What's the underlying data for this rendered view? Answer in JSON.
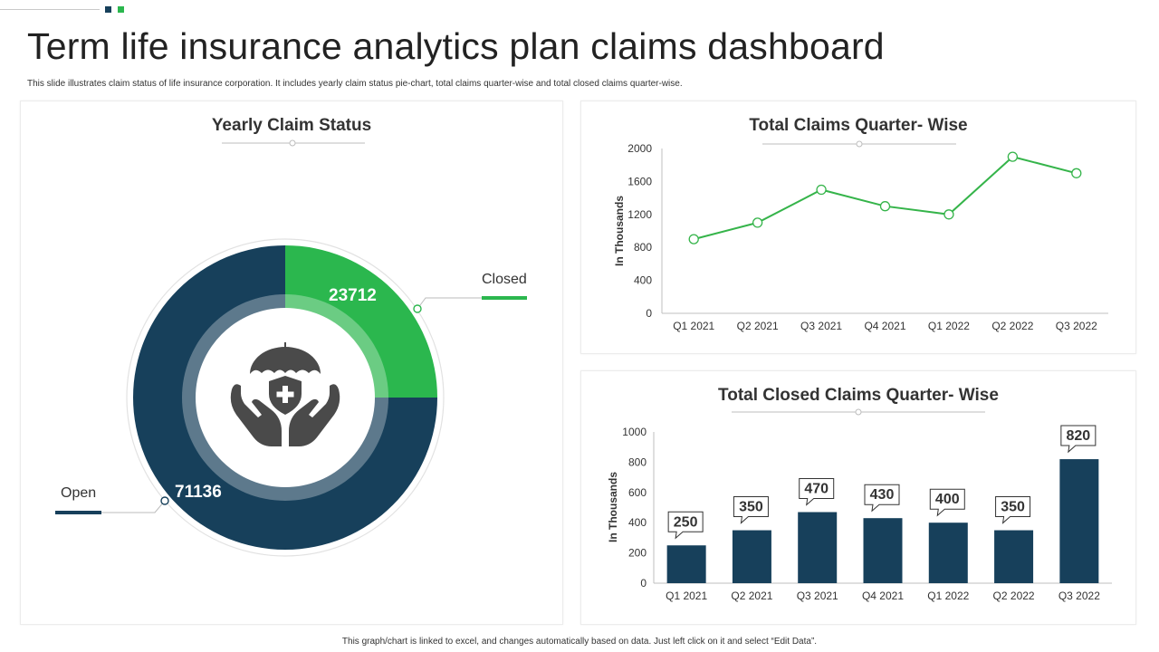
{
  "page": {
    "title": "Term life insurance analytics plan claims dashboard",
    "subtitle": "This slide illustrates claim status of life insurance corporation. It includes yearly claim status pie-chart, total claims quarter-wise and total closed claims quarter-wise.",
    "footer": "This graph/chart is linked to excel, and changes automatically based on data. Just left click on it and select “Edit Data”."
  },
  "colors": {
    "navy": "#17405b",
    "green": "#2bb74e",
    "line_green": "#35b44a",
    "icon_gray": "#4a4a4a"
  },
  "icons": {
    "center": "umbrella-hands-shield-icon"
  },
  "chart_data": [
    {
      "type": "pie",
      "title": "Yearly Claim Status",
      "labels": [
        "Closed",
        "Open"
      ],
      "values": [
        23712,
        71136
      ],
      "value_labels": [
        "23712",
        "71136"
      ]
    },
    {
      "type": "line",
      "title": "Total Claims Quarter- Wise",
      "categories": [
        "Q1 2021",
        "Q2 2021",
        "Q3 2021",
        "Q4 2021",
        "Q1 2022",
        "Q2 2022",
        "Q3 2022"
      ],
      "values": [
        900,
        1100,
        1500,
        1300,
        1200,
        1900,
        1700
      ],
      "ylabel": "In Thousands",
      "ylim": [
        0,
        2000
      ],
      "yticks": [
        0,
        400,
        800,
        1200,
        1600,
        2000
      ]
    },
    {
      "type": "bar",
      "title": "Total Closed Claims Quarter- Wise",
      "categories": [
        "Q1 2021",
        "Q2 2021",
        "Q3 2021",
        "Q4 2021",
        "Q1 2022",
        "Q2 2022",
        "Q3 2022"
      ],
      "values": [
        250,
        350,
        470,
        430,
        400,
        350,
        820
      ],
      "ylabel": "In Thousands",
      "ylim": [
        0,
        1000
      ],
      "yticks": [
        0,
        200,
        400,
        600,
        800,
        1000
      ]
    }
  ]
}
